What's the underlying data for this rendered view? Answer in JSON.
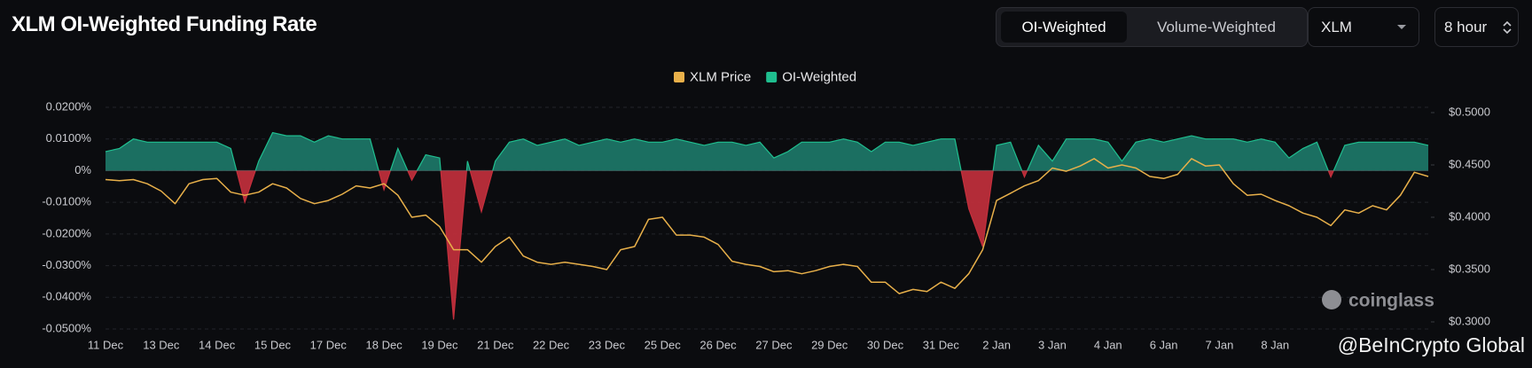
{
  "chart_data": {
    "type": "combo",
    "title": "XLM OI-Weighted Funding Rate",
    "categories": [
      "11 Dec",
      null,
      null,
      null,
      "13 Dec",
      null,
      null,
      null,
      "14 Dec",
      null,
      null,
      null,
      "15 Dec",
      null,
      null,
      null,
      "17 Dec",
      null,
      null,
      null,
      "18 Dec",
      null,
      null,
      null,
      "19 Dec",
      null,
      null,
      null,
      "21 Dec",
      null,
      null,
      null,
      "22 Dec",
      null,
      null,
      null,
      "23 Dec",
      null,
      null,
      null,
      "25 Dec",
      null,
      null,
      null,
      "26 Dec",
      null,
      null,
      null,
      "27 Dec",
      null,
      null,
      null,
      "29 Dec",
      null,
      null,
      null,
      "30 Dec",
      null,
      null,
      null,
      "31 Dec",
      null,
      null,
      null,
      "2 Jan",
      null,
      null,
      null,
      "3 Jan",
      null,
      null,
      null,
      "4 Jan",
      null,
      null,
      null,
      "6 Jan",
      null,
      null,
      null,
      "7 Jan",
      null,
      null,
      null,
      "8 Jan",
      null,
      null,
      null,
      null,
      null,
      null,
      null,
      null,
      null,
      null,
      null
    ],
    "series": [
      {
        "name": "XLM Price",
        "type": "line",
        "axis": "y2",
        "color": "#e8b04a",
        "values": [
          0.436,
          0.435,
          0.436,
          0.432,
          0.425,
          0.413,
          0.432,
          0.436,
          0.437,
          0.424,
          0.421,
          0.424,
          0.432,
          0.428,
          0.418,
          0.413,
          0.416,
          0.422,
          0.43,
          0.428,
          0.432,
          0.421,
          0.4,
          0.402,
          0.391,
          0.369,
          0.369,
          0.357,
          0.372,
          0.381,
          0.363,
          0.357,
          0.355,
          0.357,
          0.355,
          0.353,
          0.35,
          0.369,
          0.372,
          0.398,
          0.4,
          0.383,
          0.383,
          0.381,
          0.374,
          0.358,
          0.355,
          0.353,
          0.348,
          0.349,
          0.346,
          0.349,
          0.353,
          0.355,
          0.353,
          0.338,
          0.338,
          0.327,
          0.331,
          0.329,
          0.338,
          0.332,
          0.346,
          0.369,
          0.416,
          0.423,
          0.43,
          0.435,
          0.447,
          0.444,
          0.449,
          0.456,
          0.447,
          0.45,
          0.447,
          0.439,
          0.437,
          0.441,
          0.456,
          0.449,
          0.45,
          0.432,
          0.421,
          0.422,
          0.416,
          0.411,
          0.404,
          0.4,
          0.392,
          0.407,
          0.404,
          0.411,
          0.407,
          0.421,
          0.443,
          0.439
        ]
      },
      {
        "name": "OI-Weighted",
        "type": "area",
        "color": "#1fbf8f",
        "negative_color": "#c52f3c",
        "values": [
          0.006,
          0.007,
          0.01,
          0.009,
          0.009,
          0.009,
          0.009,
          0.009,
          0.009,
          0.007,
          -0.01,
          0.003,
          0.012,
          0.011,
          0.011,
          0.009,
          0.011,
          0.01,
          0.01,
          0.01,
          -0.006,
          0.007,
          -0.003,
          0.005,
          0.004,
          -0.047,
          0.003,
          -0.013,
          0.003,
          0.009,
          0.01,
          0.008,
          0.009,
          0.01,
          0.008,
          0.009,
          0.01,
          0.009,
          0.01,
          0.009,
          0.009,
          0.01,
          0.009,
          0.008,
          0.009,
          0.009,
          0.008,
          0.009,
          0.004,
          0.006,
          0.009,
          0.009,
          0.009,
          0.01,
          0.009,
          0.006,
          0.009,
          0.009,
          0.008,
          0.009,
          0.01,
          0.01,
          -0.012,
          -0.024,
          0.008,
          0.009,
          -0.002,
          0.008,
          0.003,
          0.01,
          0.01,
          0.01,
          0.009,
          0.003,
          0.009,
          0.01,
          0.009,
          0.01,
          0.011,
          0.01,
          0.01,
          0.01,
          0.009,
          0.01,
          0.009,
          0.004,
          0.007,
          0.009,
          -0.002,
          0.008,
          0.009,
          0.009,
          0.009,
          0.009,
          0.009,
          0.008
        ]
      }
    ],
    "ylim": [
      -0.05,
      0.02
    ],
    "yticks": [
      {
        "value": 0.02,
        "label": "0.0200%"
      },
      {
        "value": 0.01,
        "label": "0.0100%"
      },
      {
        "value": 0,
        "label": "0%"
      },
      {
        "value": -0.01,
        "label": "-0.0100%"
      },
      {
        "value": -0.02,
        "label": "-0.0200%"
      },
      {
        "value": -0.03,
        "label": "-0.0300%"
      },
      {
        "value": -0.04,
        "label": "-0.0400%"
      },
      {
        "value": -0.05,
        "label": "-0.0500%"
      }
    ],
    "y2lim": [
      0.3,
      0.5
    ],
    "y2ticks": [
      {
        "value": 0.5,
        "label": "$0.5000"
      },
      {
        "value": 0.45,
        "label": "$0.4500"
      },
      {
        "value": 0.4,
        "label": "$0.4000"
      },
      {
        "value": 0.35,
        "label": "$0.3500"
      },
      {
        "value": 0.3,
        "label": "$0.3000"
      }
    ],
    "grid": true,
    "legend": "top",
    "watermarks": [
      "coinglass",
      "@BeInCrypto Global"
    ]
  },
  "controls": {
    "mode_options": [
      "OI-Weighted",
      "Volume-Weighted"
    ],
    "symbol": "XLM",
    "interval": "8 hour"
  }
}
